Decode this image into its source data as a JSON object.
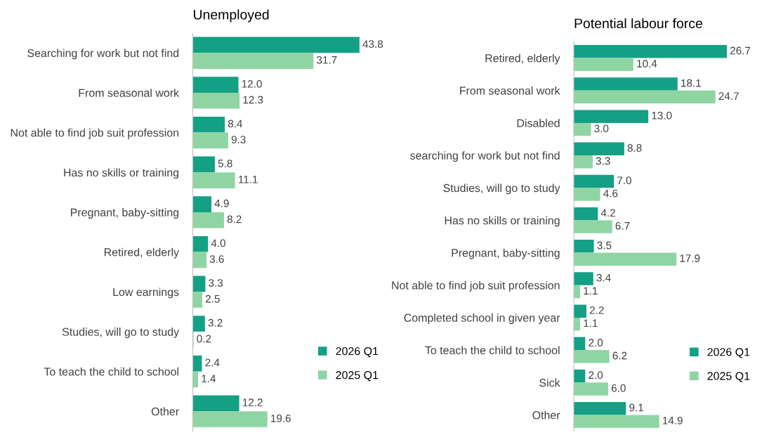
{
  "chart_data": [
    {
      "type": "bar",
      "orientation": "horizontal",
      "title": "Unemployed",
      "categories": [
        "Searching for work but not find",
        "From seasonal work",
        "Not able to find job suit profession",
        "Has no skills or training",
        "Pregnant, baby-sitting",
        "Retired, elderly",
        "Low earnings",
        "Studies, will go to study",
        "To teach the child to school",
        "Other"
      ],
      "series": [
        {
          "name": "2026 Q1",
          "color": "#14a085",
          "values": [
            43.8,
            12.0,
            8.4,
            5.8,
            4.9,
            4.0,
            3.3,
            3.2,
            2.4,
            12.2
          ],
          "value_labels": [
            "43.8",
            "12.0",
            "8.4",
            "5.8",
            "4.9",
            "4.0",
            "3.3",
            "3.2",
            "2.4",
            "12.2"
          ]
        },
        {
          "name": "2025 Q1",
          "color": "#8fd5a3",
          "values": [
            31.7,
            12.3,
            9.3,
            11.1,
            8.2,
            3.6,
            2.5,
            0.2,
            1.4,
            19.6
          ],
          "value_labels": [
            "31.7",
            "12.3",
            "9.3",
            "11.1",
            "8.2",
            "3.6",
            "2.5",
            "0.2",
            "1.4",
            "19.6"
          ]
        }
      ],
      "legend": "bottom right"
    },
    {
      "type": "bar",
      "orientation": "horizontal",
      "title": "Potential labour force",
      "categories": [
        "Retired, elderly",
        "From seasonal work",
        "Disabled",
        "searching for work but not find",
        "Studies, will go to study",
        "Has no skills or training",
        "Pregnant, baby-sitting",
        "Not able to find job suit profession",
        "Completed school in given year",
        "To teach the child to school",
        "Sick",
        "Other"
      ],
      "series": [
        {
          "name": "2026 Q1",
          "color": "#14a085",
          "values": [
            26.7,
            18.1,
            13.0,
            8.8,
            7.0,
            4.2,
            3.5,
            3.4,
            2.2,
            2.0,
            2.0,
            9.1
          ],
          "value_labels": [
            "26.7",
            "18.1",
            "13.0",
            "8.8",
            "7.0",
            "4.2",
            "3.5",
            "3.4",
            "2.2",
            "2.0",
            "2.0",
            "9.1"
          ]
        },
        {
          "name": "2025 Q1",
          "color": "#8fd5a3",
          "values": [
            10.4,
            24.7,
            3.0,
            3.3,
            4.6,
            6.7,
            17.9,
            1.1,
            1.1,
            6.2,
            6.0,
            14.9
          ],
          "value_labels": [
            "10.4",
            "24.7",
            "3.0",
            "3.3",
            "4.6",
            "6.7",
            "17.9",
            "1.1",
            "1.1",
            "6.2",
            "6.0",
            "14.9"
          ]
        }
      ],
      "legend": "bottom right"
    }
  ]
}
